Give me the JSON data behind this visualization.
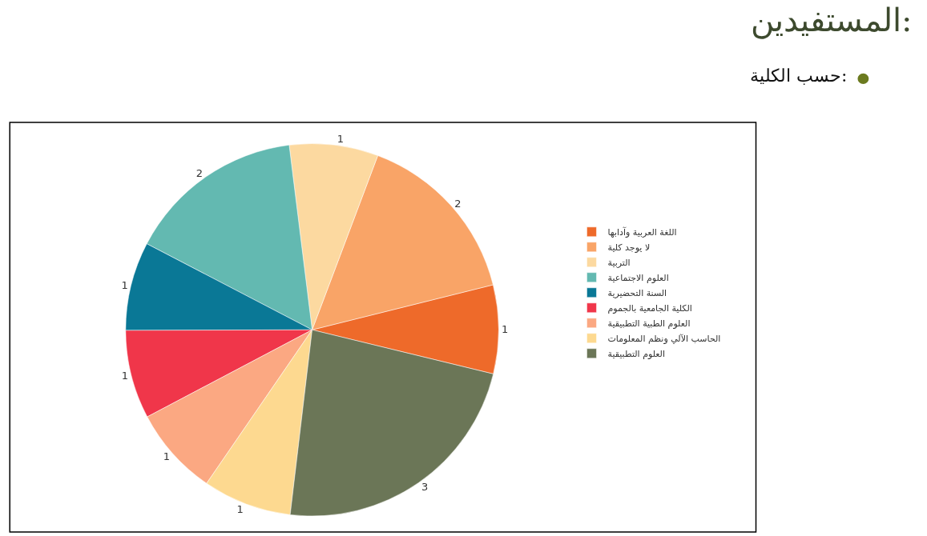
{
  "chart_data": {
    "type": "pie",
    "title": "المستفيدين:",
    "subtitle": "حسب الكلية:",
    "categories": [
      "اللغة العربية وآدابها",
      "لا يوجد كلية",
      "التربية",
      "العلوم الاجتماعية",
      "السنة التحضيرية",
      "الكلية الجامعية بالجموم",
      "العلوم الطبية التطبيقية",
      "الحاسب الآلي ونظم المعلومات",
      "العلوم التطبيقية"
    ],
    "values": [
      1,
      2,
      1,
      2,
      1,
      1,
      1,
      1,
      3
    ],
    "colors": [
      "#ee6a2a",
      "#f9a467",
      "#fcd9a0",
      "#63b9b1",
      "#0a7896",
      "#f0364a",
      "#fba882",
      "#fdd990",
      "#6b7657"
    ],
    "data_labels": true,
    "legend": "right"
  }
}
